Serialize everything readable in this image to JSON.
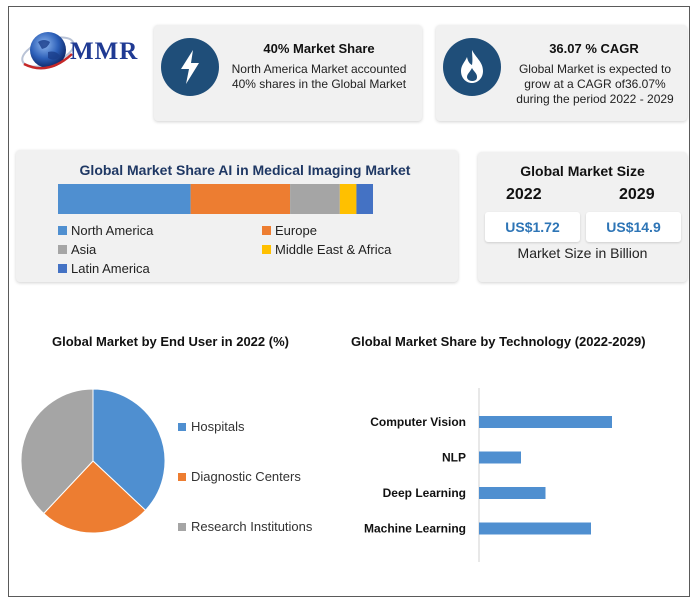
{
  "logo": {
    "text": "MMR"
  },
  "stats": [
    {
      "icon": "lightning-bolt-icon",
      "title": "40% Market Share",
      "text": "North America Market accounted 40% shares in the Global Market"
    },
    {
      "icon": "flame-icon",
      "title": "36.07 % CAGR",
      "text": "Global Market is expected to grow at a CAGR of36.07% during the period 2022 - 2029"
    }
  ],
  "market_share": {
    "title": "Global Market Share AI in Medical Imaging Market",
    "legend": [
      "North America",
      "Europe",
      "Asia",
      "Middle East & Africa",
      "Latin America"
    ]
  },
  "market_size": {
    "title": "Global Market Size",
    "year_start": "2022",
    "year_end": "2029",
    "value_start": "US$1.72",
    "value_end": "US$14.9",
    "note": "Market Size in Billion"
  },
  "end_user": {
    "title": "Global Market by End User in 2022 (%)",
    "legend": [
      "Hospitals",
      "Diagnostic Centers",
      "Research Institutions"
    ]
  },
  "technology": {
    "title": "Global Market Share by Technology (2022-2029)"
  },
  "colors": {
    "blue": "#4f8fd0",
    "orange": "#ed7d31",
    "gray": "#a5a5a5",
    "yellow": "#ffc000",
    "darkblue": "#4472c4",
    "navy": "#1f4e79"
  },
  "chart_data": [
    {
      "type": "bar",
      "orientation": "horizontal-stacked",
      "title": "Global Market Share AI in Medical Imaging Market",
      "series": [
        {
          "name": "North America",
          "values": [
            40
          ]
        },
        {
          "name": "Europe",
          "values": [
            30
          ]
        },
        {
          "name": "Asia",
          "values": [
            15
          ]
        },
        {
          "name": "Middle East & Africa",
          "values": [
            5
          ]
        },
        {
          "name": "Latin America",
          "values": [
            5
          ]
        }
      ],
      "legend_position": "bottom"
    },
    {
      "type": "pie",
      "title": "Global Market by End User in 2022 (%)",
      "categories": [
        "Hospitals",
        "Diagnostic Centers",
        "Research Institutions"
      ],
      "values": [
        37,
        25,
        38
      ],
      "legend_position": "right"
    },
    {
      "type": "bar",
      "orientation": "horizontal",
      "title": "Global Market Share by Technology (2022-2029)",
      "categories": [
        "Computer Vision",
        "NLP",
        "Deep Learning",
        "Machine Learning"
      ],
      "values": [
        38,
        12,
        19,
        32
      ],
      "xlim": [
        0,
        60
      ],
      "grid": false
    }
  ]
}
